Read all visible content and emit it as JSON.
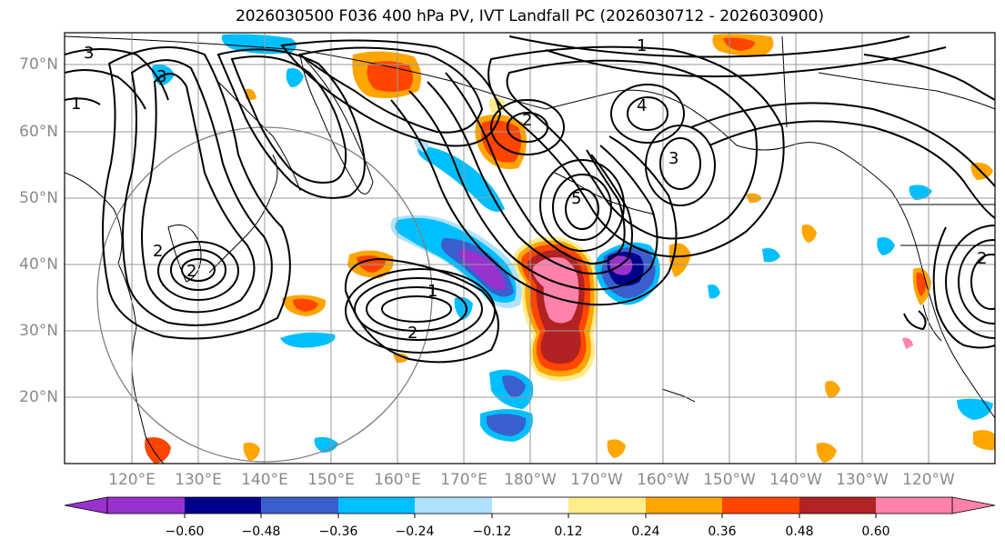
{
  "title": "2026030500 F036 400 hPa PV, IVT Landfall PC (2026030712 - 2026030900)",
  "lat_labels": [
    "70°N",
    "60°N",
    "50°N",
    "40°N",
    "30°N",
    "20°N"
  ],
  "lon_labels": [
    "120°E",
    "130°E",
    "140°E",
    "150°E",
    "160°E",
    "170°E",
    "180°W",
    "170°W",
    "160°W",
    "150°W",
    "140°W",
    "130°W",
    "120°W"
  ],
  "colorbar": {
    "colors": [
      "#9932cc",
      "#00008b",
      "#3a5fcd",
      "#00bfff",
      "#b0e2ff",
      "#ffffff",
      "#ffec8b",
      "#ffa500",
      "#ff4500",
      "#b22222",
      "#ff82ab"
    ],
    "extend_min_color": "#9932cc",
    "extend_max_color": "#ff82ab",
    "tick_labels": [
      "−0.60",
      "−0.48",
      "−0.36",
      "−0.24",
      "−0.12",
      "0.12",
      "0.24",
      "0.36",
      "0.48",
      "0.60"
    ]
  },
  "contour_labels": [
    "3",
    "1",
    "2",
    "2",
    "4",
    "2",
    "2",
    "1",
    "3",
    "5",
    "1",
    "3",
    "2"
  ],
  "colors": {
    "contour": "#000000",
    "coast": "#000000",
    "grid": "#9a9a9a",
    "circle": "#808080",
    "axis_label": "#8a8a8a"
  }
}
